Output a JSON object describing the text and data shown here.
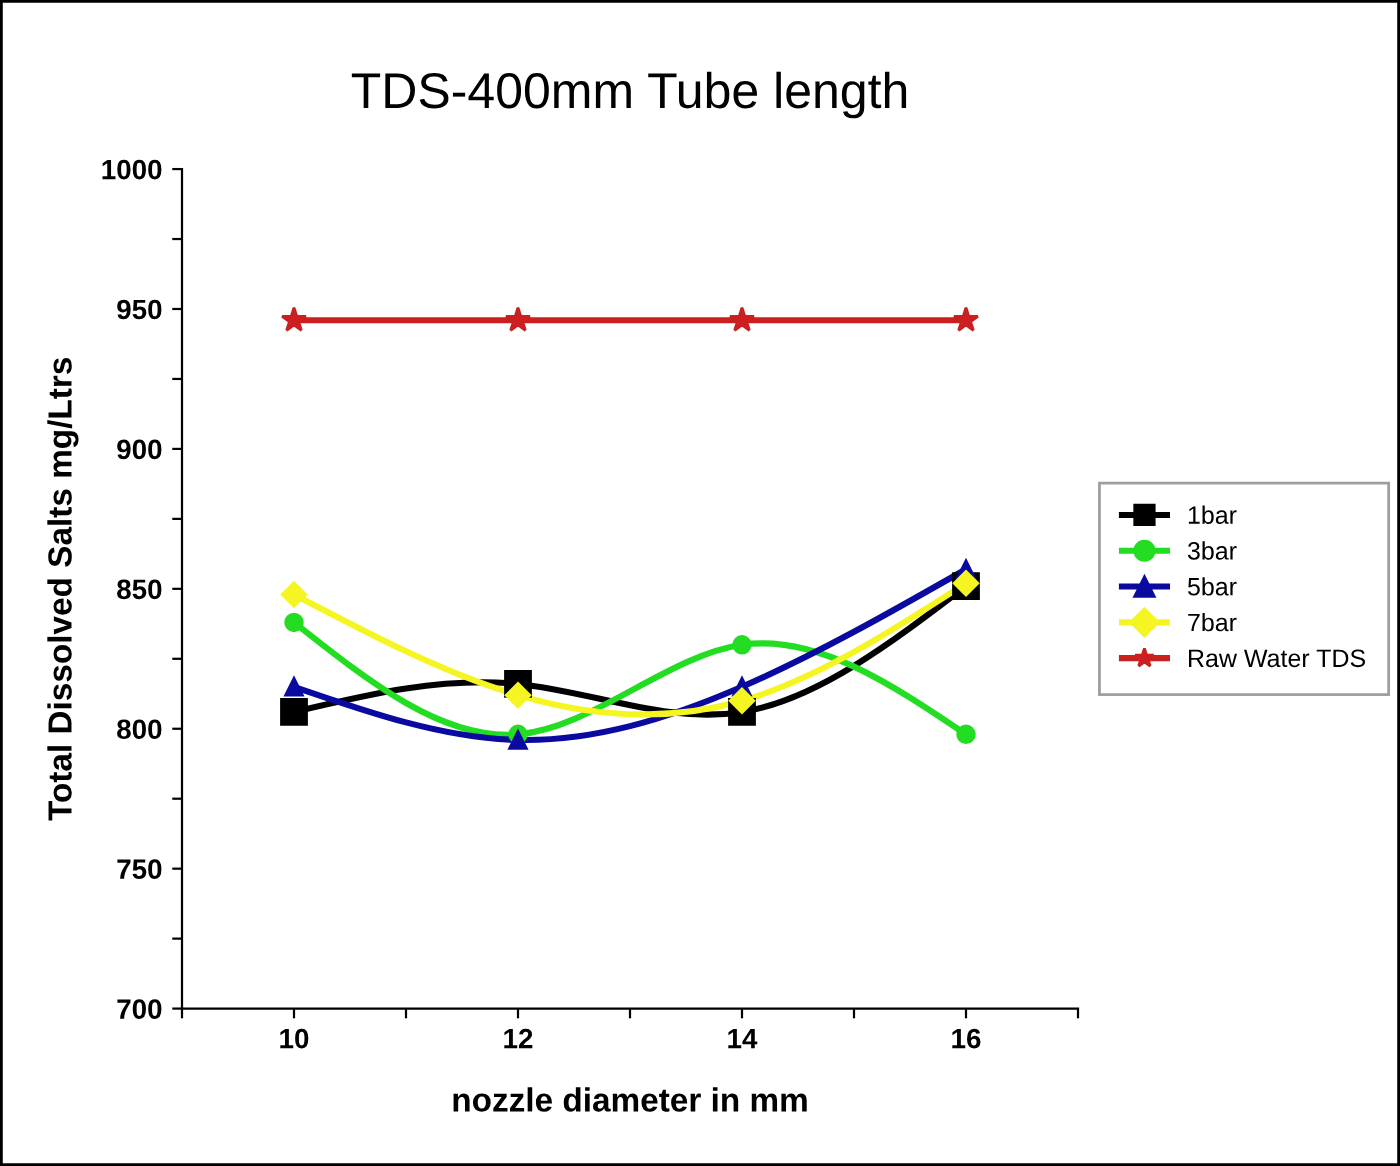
{
  "chart_data": {
    "type": "line",
    "title": "TDS-400mm Tube length",
    "xlabel": "nozzle diameter in mm",
    "ylabel": "Total Dissolved Salts mg/Ltrs",
    "x": [
      10,
      12,
      14,
      16
    ],
    "series": [
      {
        "name": "1bar",
        "color": "#000000",
        "marker": "square",
        "values": [
          806,
          816,
          806,
          851
        ]
      },
      {
        "name": "3bar",
        "color": "#22dd22",
        "marker": "circle",
        "values": [
          838,
          798,
          830,
          798
        ]
      },
      {
        "name": "5bar",
        "color": "#0a0aa0",
        "marker": "triangle",
        "values": [
          815,
          796,
          815,
          857
        ]
      },
      {
        "name": "7bar",
        "color": "#f5f522",
        "marker": "diamond",
        "values": [
          848,
          812,
          810,
          852
        ]
      },
      {
        "name": "Raw Water TDS",
        "color": "#cc1f1f",
        "marker": "star",
        "values": [
          946,
          946,
          946,
          946
        ]
      }
    ],
    "xlim": [
      9,
      17
    ],
    "xticks": [
      {
        "value": 9,
        "label": null
      },
      10,
      {
        "value": 11,
        "label": null
      },
      12,
      {
        "value": 13,
        "label": null
      },
      14,
      {
        "value": 15,
        "label": null
      },
      16,
      {
        "value": 17,
        "label": null
      }
    ],
    "ylim": [
      700,
      1000
    ],
    "yticks": [
      700,
      {
        "value": 725,
        "label": null
      },
      750,
      {
        "value": 775,
        "label": null
      },
      800,
      {
        "value": 825,
        "label": null
      },
      850,
      {
        "value": 875,
        "label": null
      },
      900,
      {
        "value": 925,
        "label": null
      },
      950,
      {
        "value": 975,
        "label": null
      },
      1000
    ],
    "legend": "right",
    "grid": false
  }
}
